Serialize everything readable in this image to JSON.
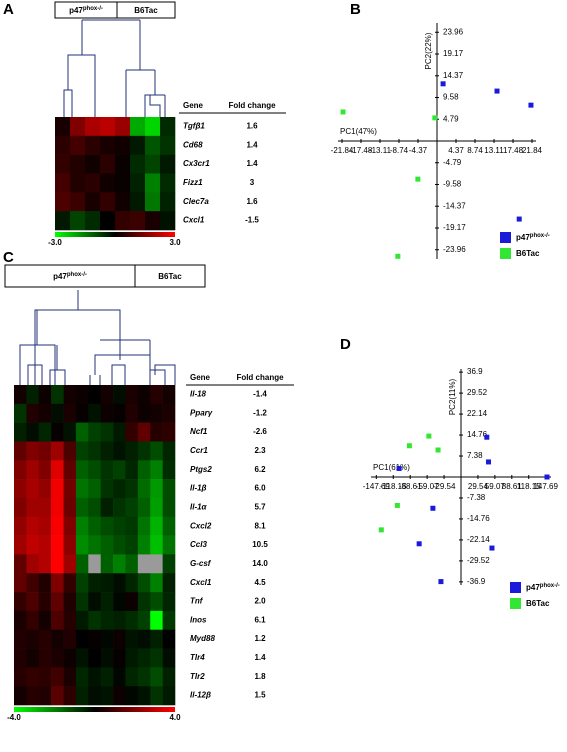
{
  "chart_data": [
    {
      "type": "heatmap",
      "panel": "A",
      "groups": [
        {
          "name": "p47",
          "sup": "phox-/-"
        },
        {
          "name": "B6Tac"
        }
      ],
      "gene_header": "Gene",
      "fold_header": "Fold change",
      "genes": [
        "Tgfβ1",
        "Cd68",
        "Cx3cr1",
        "Fizz1",
        "Clec7a",
        "Cxcl1"
      ],
      "fold_change": [
        1.6,
        1.4,
        1.4,
        3,
        1.6,
        -1.5
      ],
      "values": [
        [
          0.3,
          1.5,
          2,
          2.2,
          1.8,
          -2,
          -2.5,
          -0.5
        ],
        [
          0.5,
          0.8,
          0.5,
          0.3,
          0.2,
          -0.3,
          -1,
          -0.6
        ],
        [
          0.6,
          0.4,
          0.2,
          0.5,
          0.1,
          -0.5,
          -0.8,
          -0.3
        ],
        [
          0.8,
          0.4,
          0.5,
          0.2,
          0.1,
          -0.4,
          -1.5,
          -0.5
        ],
        [
          0.9,
          0.7,
          0.3,
          0.6,
          0.2,
          -0.3,
          -1.4,
          -0.4
        ],
        [
          -0.3,
          -0.8,
          -0.5,
          0,
          0.6,
          0.7,
          0.3,
          -0.2
        ]
      ],
      "clim": [
        -3,
        3
      ],
      "colorbar_ticks": [
        {
          "value": -3,
          "label": "-3.0"
        },
        {
          "value": 3,
          "label": "3.0"
        }
      ]
    },
    {
      "type": "scatter",
      "panel": "B",
      "xlabel": "PC1(47%)",
      "ylabel": "PC2(22%)",
      "xlim": [
        -21.84,
        21.84
      ],
      "ylim": [
        -26,
        26
      ],
      "xticks": [
        -21.84,
        -17.48,
        -13.11,
        -8.74,
        -4.37,
        4.37,
        8.74,
        13.11,
        17.48,
        21.84
      ],
      "yticks": [
        23.96,
        19.17,
        14.37,
        9.58,
        4.79,
        -4.79,
        -9.58,
        -14.37,
        -19.17,
        -23.96
      ],
      "series": [
        {
          "name": "p47",
          "name_sup": "phox-/-",
          "color": "#1a1adb",
          "x": [
            1.4,
            13.8,
            21.6,
            18.9
          ],
          "y": [
            12.6,
            11,
            7.9,
            -17.2
          ]
        },
        {
          "name": "B6Tac",
          "color": "#33e633",
          "x": [
            -21.6,
            -0.5,
            -4.4,
            -9
          ],
          "y": [
            6.4,
            5.1,
            -8.4,
            -25.4
          ]
        }
      ]
    },
    {
      "type": "heatmap",
      "panel": "C",
      "groups": [
        {
          "name": "p47",
          "sup": "phox-/-"
        },
        {
          "name": "B6Tac"
        }
      ],
      "gene_header": "Gene",
      "fold_header": "Fold change",
      "genes": [
        "Il-18",
        "Pparγ",
        "Ncf1",
        "Ccr1",
        "Ptgs2",
        "Il-1β",
        "Il-1α",
        "Cxcl2",
        "Ccl3",
        "G-csf",
        "Cxcl1",
        "Tnf",
        "Inos",
        "Myd88",
        "Tlr4",
        "Tlr2",
        "Il-12β"
      ],
      "fold_change": [
        -1.4,
        -1.2,
        -2.6,
        2.3,
        6.2,
        6,
        5.7,
        8.1,
        10.5,
        14,
        4.5,
        2,
        6.1,
        1.2,
        1.4,
        1.8,
        1.5
      ],
      "value_labels": [
        "-1.4",
        "-1.2",
        "-2.6",
        "2.3",
        "6.2",
        "6.0",
        "5.7",
        "8.1",
        "10.5",
        "14.0",
        "4.5",
        "2.0",
        "6.1",
        "1.2",
        "1.4",
        "1.8",
        "1.5"
      ],
      "values": [
        [
          0.3,
          -0.5,
          0.2,
          -0.8,
          0.3,
          0.2,
          0,
          0.3,
          -0.2,
          0.4,
          0.2,
          0.6,
          0.3
        ],
        [
          -0.8,
          0.5,
          0.3,
          -0.2,
          0.4,
          0.1,
          -0.3,
          0.2,
          0.1,
          0.5,
          0.2,
          0.3,
          0.4
        ],
        [
          -0.5,
          -0.2,
          -0.6,
          0.1,
          -0.3,
          -1.5,
          -1,
          -0.8,
          -0.4,
          0.8,
          1.5,
          0.6,
          0.7
        ],
        [
          1.5,
          2,
          1.8,
          2.5,
          1.2,
          -1,
          -0.8,
          -0.5,
          -0.3,
          -0.5,
          -0.8,
          -1.2,
          -0.6
        ],
        [
          2,
          2.5,
          2,
          3.5,
          1.5,
          -1.5,
          -1.2,
          -0.8,
          -1,
          -0.6,
          -1.5,
          -2,
          -0.7
        ],
        [
          2.2,
          2.6,
          2.3,
          3.8,
          1.8,
          -1.8,
          -1.5,
          -0.8,
          -0.6,
          -0.8,
          -1.7,
          -2.4,
          -1.2
        ],
        [
          2,
          2.5,
          2.5,
          3.8,
          1.7,
          -1.5,
          -1.2,
          -0.5,
          -0.8,
          -1,
          -1.5,
          -2.5,
          -1.2
        ],
        [
          2.3,
          2.8,
          2.6,
          3.9,
          2,
          -2,
          -1.5,
          -1.2,
          -1,
          -0.9,
          -1.8,
          -2.8,
          -1.5
        ],
        [
          2.5,
          3,
          2.8,
          4,
          2.2,
          -2.2,
          -1.8,
          -1.5,
          -1.2,
          -1,
          -2,
          -3,
          -1.8
        ],
        [
          1.5,
          2.5,
          2.8,
          4,
          2.5,
          -1.5,
          null,
          -1.5,
          -2,
          -1.5,
          null,
          null,
          -1
        ],
        [
          1.5,
          1,
          0.5,
          2,
          0.8,
          -1,
          -0.5,
          -0.4,
          -0.2,
          -0.6,
          -1.2,
          -2,
          -0.5
        ],
        [
          0.8,
          1.2,
          0.6,
          1.5,
          0.5,
          -0.8,
          -0.2,
          -0.5,
          -0.1,
          0.2,
          -0.8,
          -1.2,
          -0.6
        ],
        [
          0.4,
          0.8,
          0.3,
          1.2,
          0.6,
          -0.4,
          -0.8,
          -0.6,
          -0.5,
          -0.7,
          -1,
          -4,
          -0.9
        ],
        [
          0.5,
          0.4,
          0.6,
          0.3,
          0.5,
          0,
          0.1,
          -0.1,
          0.2,
          -0.3,
          -0.2,
          -0.5,
          0
        ],
        [
          0.5,
          0.3,
          0.6,
          0.4,
          0.2,
          -0.3,
          0,
          -0.2,
          0.1,
          -0.4,
          -0.6,
          -0.8,
          -0.2
        ],
        [
          0.6,
          0.8,
          0.7,
          1,
          0.4,
          -0.6,
          -0.3,
          -0.5,
          -0.1,
          -0.6,
          -0.8,
          -1.2,
          -0.5
        ],
        [
          0.3,
          0.6,
          0.5,
          1.4,
          0.7,
          -0.5,
          -0.2,
          -0.3,
          0.2,
          -0.1,
          -0.3,
          -0.8,
          -0.4
        ]
      ],
      "clim": [
        -4,
        4
      ],
      "colorbar_ticks": [
        {
          "value": -4,
          "label": "-4.0"
        },
        {
          "value": 4,
          "label": "4.0"
        }
      ]
    },
    {
      "type": "scatter",
      "panel": "D",
      "xlabel": "PC1(61%)",
      "ylabel": "PC2(11%)",
      "xlim": [
        -150,
        150
      ],
      "ylim": [
        -38,
        38
      ],
      "xticks": [
        -147.69,
        -118.15,
        -88.61,
        -59.07,
        -29.54,
        29.54,
        59.07,
        88.61,
        118.15,
        147.69
      ],
      "yticks": [
        36.9,
        29.52,
        22.14,
        14.76,
        7.38,
        -7.38,
        -14.76,
        -22.14,
        -29.52,
        -36.9
      ],
      "series": [
        {
          "name": "p47",
          "name_sup": "phox-/-",
          "color": "#1a1adb",
          "x": [
            45,
            48,
            150,
            -108,
            -49,
            -73,
            54,
            -35
          ],
          "y": [
            14,
            5.3,
            0,
            3,
            -11,
            -23.5,
            -25,
            -36.8
          ]
        },
        {
          "name": "B6Tac",
          "color": "#33e633",
          "x": [
            -90,
            -56,
            -40,
            -111,
            -139
          ],
          "y": [
            11,
            14.4,
            9.5,
            -10,
            -18.6
          ]
        }
      ]
    }
  ]
}
